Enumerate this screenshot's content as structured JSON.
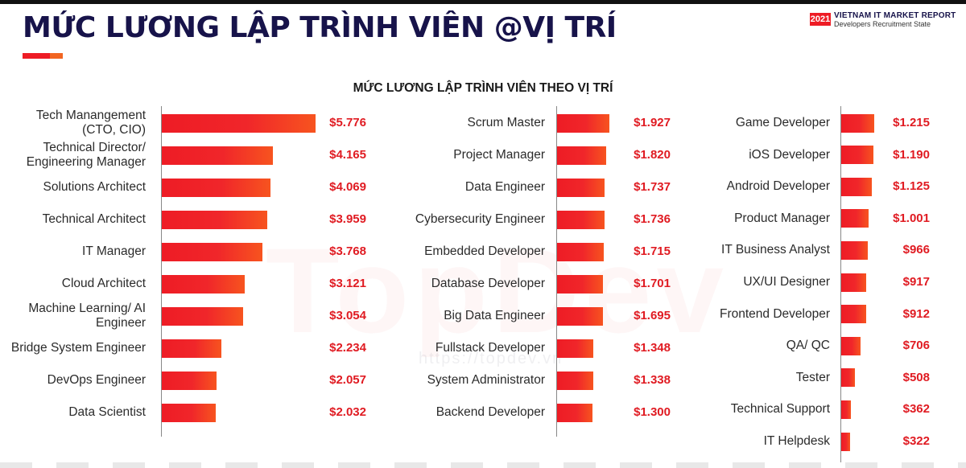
{
  "header": {
    "title": "MỨC LƯƠNG LẬP TRÌNH VIÊN @VỊ TRÍ",
    "report_year": "2021",
    "report_name": "VIETNAM IT MARKET REPORT",
    "report_subtitle": "Developers Recruitment State",
    "accent_colors": [
      "#ee1c25",
      "#f26522"
    ]
  },
  "watermark": {
    "logo": "TopDev",
    "url": "https://topdev.vn"
  },
  "chart_data": {
    "type": "bar",
    "orientation": "horizontal",
    "title": "MỨC LƯƠNG LẬP TRÌNH VIÊN THEO VỊ TRÍ",
    "bar_color": "#ee1c25",
    "value_color": "#e01b22",
    "panels": [
      {
        "categories": [
          "Tech Manangement (CTO, CIO)",
          "Technical Director/ Engineering Manager",
          "Solutions Architect",
          "Technical Architect",
          "IT Manager",
          "Cloud Architect",
          "Machine Learning/ AI Engineer",
          "Bridge System Engineer",
          "DevOps Engineer",
          "Data Scientist"
        ],
        "values": [
          5776,
          4165,
          4069,
          3959,
          3768,
          3121,
          3054,
          2234,
          2057,
          2032
        ],
        "value_labels": [
          "$5.776",
          "$4.165",
          "$4.069",
          "$3.959",
          "$3.768",
          "$3.121",
          "$3.054",
          "$2.234",
          "$2.057",
          "$2.032"
        ]
      },
      {
        "categories": [
          "Scrum Master",
          "Project Manager",
          "Data Engineer",
          "Cybersecurity Engineer",
          "Embedded Developer",
          "Database Developer",
          "Big Data Engineer",
          "Fullstack Developer",
          "System Administrator",
          "Backend Developer"
        ],
        "values": [
          1927,
          1820,
          1737,
          1736,
          1715,
          1701,
          1695,
          1348,
          1338,
          1300
        ],
        "value_labels": [
          "$1.927",
          "$1.820",
          "$1.737",
          "$1.736",
          "$1.715",
          "$1.701",
          "$1.695",
          "$1.348",
          "$1.338",
          "$1.300"
        ]
      },
      {
        "categories": [
          "Game Developer",
          "iOS Developer",
          "Android Developer",
          "Product Manager",
          "IT Business Analyst",
          "UX/UI Designer",
          "Frontend Developer",
          "QA/ QC",
          "Tester",
          "Technical Support",
          "IT Helpdesk"
        ],
        "values": [
          1215,
          1190,
          1125,
          1001,
          966,
          917,
          912,
          706,
          508,
          362,
          322
        ],
        "value_labels": [
          "$1.215",
          "$1.190",
          "$1.125",
          "$1.001",
          "$966",
          "$917",
          "$912",
          "$706",
          "$508",
          "$362",
          "$322"
        ]
      }
    ]
  }
}
